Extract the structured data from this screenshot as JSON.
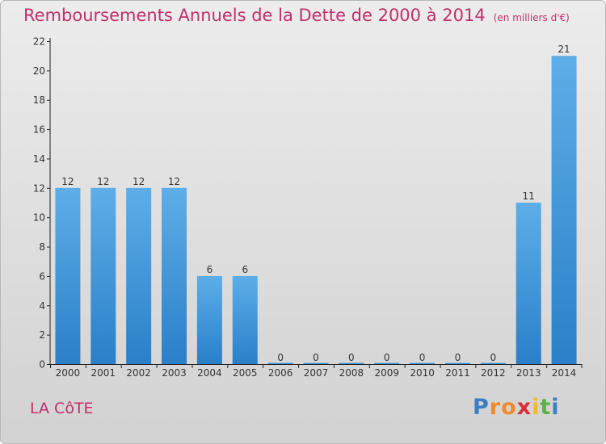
{
  "header": {
    "title": "Remboursements Annuels de la Dette de 2000 à 2014",
    "unit": "(en milliers d'€)"
  },
  "footer": {
    "commune": "LA CôTE",
    "brand_letters": [
      "P",
      "r",
      "o",
      "x",
      "i",
      "t",
      "i"
    ]
  },
  "colors": {
    "title": "#c0306a",
    "bar_top": "#5daee8",
    "bar_bottom": "#2a7fc8",
    "brand": [
      "#3a7fc2",
      "#f08a2c",
      "#f08a2c",
      "#d92f3a",
      "#f2b92a",
      "#5cb048",
      "#3a7fc2"
    ]
  },
  "chart_data": {
    "type": "bar",
    "categories": [
      "2000",
      "2001",
      "2002",
      "2003",
      "2004",
      "2005",
      "2006",
      "2007",
      "2008",
      "2009",
      "2010",
      "2011",
      "2012",
      "2013",
      "2014"
    ],
    "values": [
      12,
      12,
      12,
      12,
      6,
      6,
      0,
      0,
      0,
      0,
      0,
      0,
      0,
      11,
      21
    ],
    "title": "Remboursements Annuels de la Dette de 2000 à 2014",
    "xlabel": "",
    "ylabel": "",
    "ylim": [
      0,
      22
    ],
    "yticks": [
      0,
      2,
      4,
      6,
      8,
      10,
      12,
      14,
      16,
      18,
      20,
      22
    ],
    "grid": false,
    "data_labels": true
  }
}
